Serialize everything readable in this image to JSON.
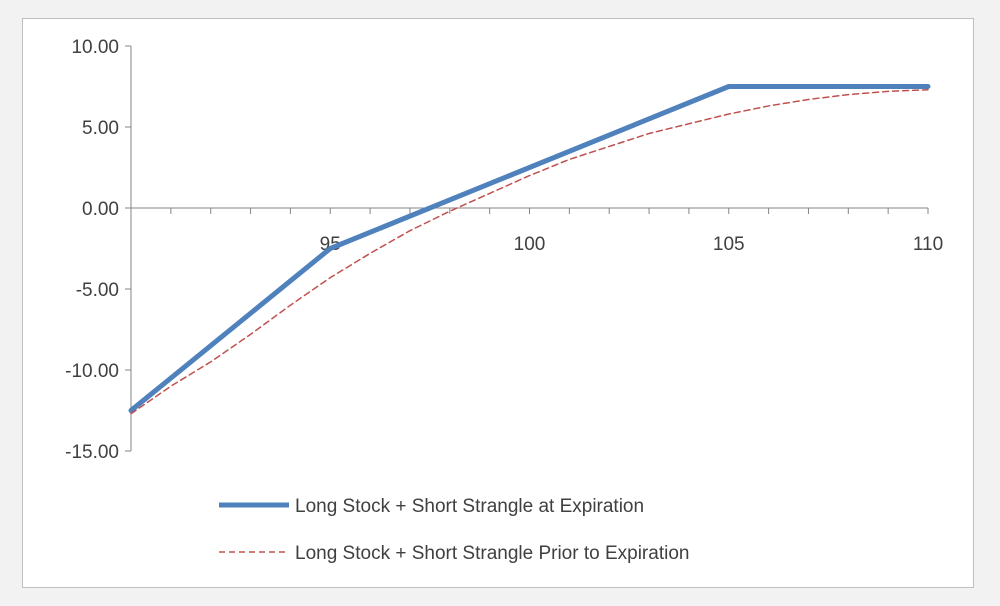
{
  "chart_data": {
    "type": "line",
    "title": "",
    "xlabel": "",
    "ylabel": "",
    "xlim": [
      90,
      110
    ],
    "ylim": [
      -15,
      10
    ],
    "x_ticks": [
      95,
      100,
      105,
      110
    ],
    "x_tick_labels": [
      "95",
      "100",
      "105",
      "110"
    ],
    "y_ticks": [
      10,
      5,
      0,
      -5,
      -10,
      -15
    ],
    "y_tick_labels": [
      "10.00",
      "5.00",
      "0.00",
      "-5.00",
      "-10.00",
      "-15.00"
    ],
    "grid": false,
    "legend_position": "bottom",
    "series": [
      {
        "name": "Long Stock + Short Strangle at Expiration",
        "color": "#4F81BD",
        "style": "solid",
        "x": [
          90,
          95,
          105,
          110
        ],
        "y": [
          -12.5,
          -2.5,
          7.5,
          7.5
        ]
      },
      {
        "name": "Long Stock + Short Strangle Prior to Expiration",
        "color": "#C0504D",
        "style": "dashed",
        "x": [
          90,
          91,
          92,
          93,
          94,
          95,
          96,
          97,
          98,
          99,
          100,
          101,
          102,
          103,
          104,
          105,
          106,
          107,
          108,
          109,
          110
        ],
        "y": [
          -12.7,
          -11.0,
          -9.5,
          -7.8,
          -6.0,
          -4.3,
          -2.8,
          -1.4,
          -0.2,
          0.9,
          2.0,
          3.0,
          3.8,
          4.6,
          5.2,
          5.8,
          6.3,
          6.7,
          7.0,
          7.2,
          7.3
        ]
      }
    ]
  }
}
